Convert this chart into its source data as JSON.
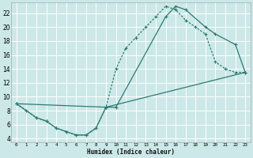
{
  "xlabel": "Humidex (Indice chaleur)",
  "bg_color": "#cce8e8",
  "grid_color": "#ffffff",
  "line_color": "#2d7a72",
  "xlim": [
    -0.5,
    23.5
  ],
  "ylim": [
    3.5,
    23.5
  ],
  "xticks": [
    0,
    1,
    2,
    3,
    4,
    5,
    6,
    7,
    8,
    9,
    10,
    11,
    12,
    13,
    14,
    15,
    16,
    17,
    18,
    19,
    20,
    21,
    22,
    23
  ],
  "yticks": [
    4,
    6,
    8,
    10,
    12,
    14,
    16,
    18,
    20,
    22
  ],
  "line1_x": [
    0,
    1,
    2,
    3,
    4,
    5,
    6,
    7,
    8,
    9,
    10,
    11,
    12,
    13,
    14,
    15,
    16,
    17,
    18,
    19,
    20,
    21,
    22,
    23
  ],
  "line1_y": [
    9,
    8,
    7,
    6.5,
    5.5,
    5,
    4.5,
    4.5,
    5.5,
    8.5,
    14,
    17,
    18.5,
    20,
    21.5,
    23,
    22.5,
    21,
    20,
    19,
    15,
    14,
    13.5,
    13.5
  ],
  "line2_x": [
    0,
    2,
    3,
    4,
    5,
    6,
    7,
    8,
    9,
    10,
    15,
    16,
    17,
    19,
    20,
    22,
    23
  ],
  "line2_y": [
    9,
    7,
    6.5,
    5.5,
    5,
    4.5,
    4.5,
    5.5,
    8.5,
    8.5,
    21.5,
    23,
    22.5,
    20,
    19,
    17.5,
    13.5
  ],
  "line3_x": [
    0,
    9,
    23
  ],
  "line3_y": [
    9,
    8.5,
    13.5
  ]
}
